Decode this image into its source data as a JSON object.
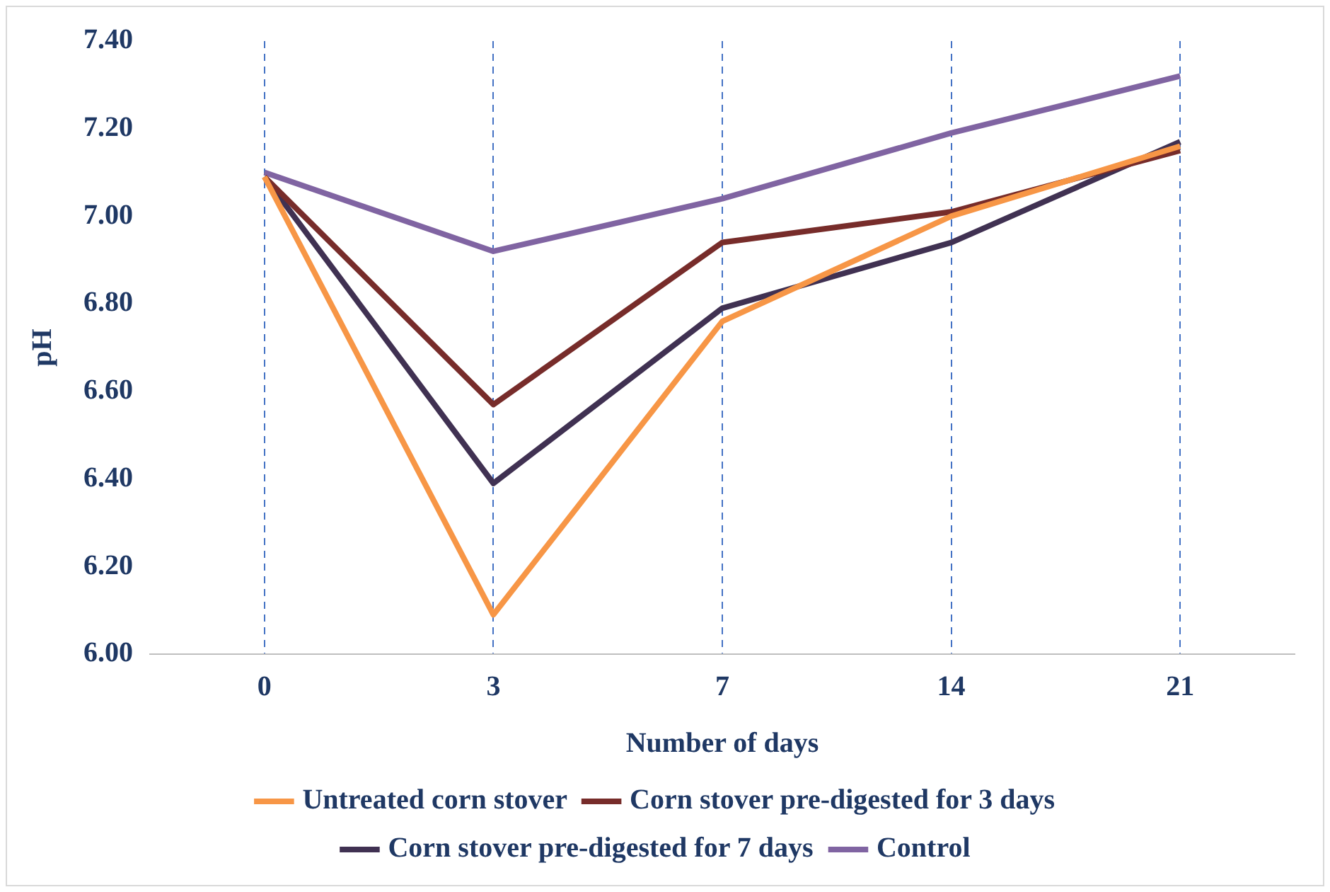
{
  "chart_data": {
    "type": "line",
    "xlabel": "Number of days",
    "ylabel": "pH",
    "categories": [
      "0",
      "3",
      "7",
      "14",
      "21"
    ],
    "series": [
      {
        "name": "Untreated corn stover",
        "color": "#f79646",
        "values": [
          7.09,
          6.09,
          6.76,
          7.0,
          7.16
        ]
      },
      {
        "name": "Corn stover pre-digested for 3 days",
        "color": "#772c2a",
        "values": [
          7.09,
          6.57,
          6.94,
          7.01,
          7.15
        ]
      },
      {
        "name": "Corn stover pre-digested for 7 days",
        "color": "#403152",
        "values": [
          7.09,
          6.39,
          6.79,
          6.94,
          7.17
        ]
      },
      {
        "name": "Control",
        "color": "#8064a2",
        "values": [
          7.1,
          6.92,
          7.04,
          7.19,
          7.32
        ]
      }
    ],
    "ylim": [
      6.0,
      7.4
    ],
    "yticks": [
      {
        "value": 6.0,
        "label": "6.00"
      },
      {
        "value": 6.2,
        "label": "6.20"
      },
      {
        "value": 6.4,
        "label": "6.40"
      },
      {
        "value": 6.6,
        "label": "6.60"
      },
      {
        "value": 6.8,
        "label": "6.80"
      },
      {
        "value": 7.0,
        "label": "7.00"
      },
      {
        "value": 7.2,
        "label": "7.20"
      },
      {
        "value": 7.4,
        "label": "7.40"
      }
    ],
    "grid": "x",
    "legend": "bottom",
    "marker": "none",
    "line_style": "solid"
  }
}
